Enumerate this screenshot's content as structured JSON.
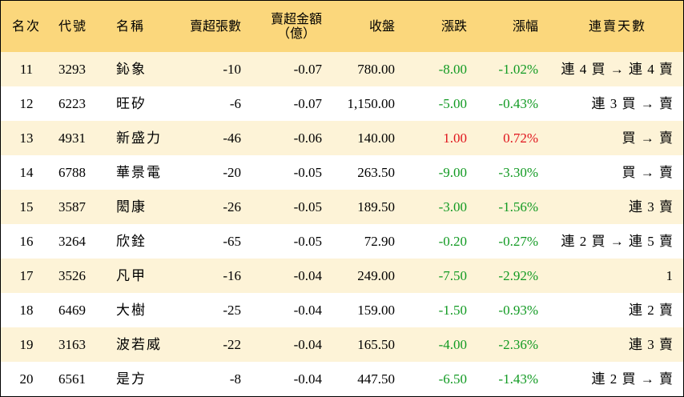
{
  "headers": {
    "rank": "名次",
    "code": "代號",
    "name": "名稱",
    "qty": "賣超張數",
    "amount_line1": "賣超金額",
    "amount_line2": "（億）",
    "close": "收盤",
    "change": "漲跌",
    "pct": "漲幅",
    "days": "連賣天數"
  },
  "colors": {
    "header_bg": "#fbd77c",
    "stripe_bg": "#fdf3d7",
    "down": "#119a22",
    "up": "#e0141c"
  },
  "rows": [
    {
      "rank": "11",
      "code": "3293",
      "name": "鈊象",
      "qty": "-10",
      "amount": "-0.07",
      "close": "780.00",
      "change": "-8.00",
      "pct": "-1.02%",
      "days": "連 4 買 → 連 4 賣",
      "direction": "down"
    },
    {
      "rank": "12",
      "code": "6223",
      "name": "旺矽",
      "qty": "-6",
      "amount": "-0.07",
      "close": "1,150.00",
      "change": "-5.00",
      "pct": "-0.43%",
      "days": "連 3 買 → 賣",
      "direction": "down"
    },
    {
      "rank": "13",
      "code": "4931",
      "name": "新盛力",
      "qty": "-46",
      "amount": "-0.06",
      "close": "140.00",
      "change": "1.00",
      "pct": "0.72%",
      "days": "買 → 賣",
      "direction": "up"
    },
    {
      "rank": "14",
      "code": "6788",
      "name": "華景電",
      "qty": "-20",
      "amount": "-0.05",
      "close": "263.50",
      "change": "-9.00",
      "pct": "-3.30%",
      "days": "買 → 賣",
      "direction": "down"
    },
    {
      "rank": "15",
      "code": "3587",
      "name": "閎康",
      "qty": "-26",
      "amount": "-0.05",
      "close": "189.50",
      "change": "-3.00",
      "pct": "-1.56%",
      "days": "連 3 賣",
      "direction": "down"
    },
    {
      "rank": "16",
      "code": "3264",
      "name": "欣銓",
      "qty": "-65",
      "amount": "-0.05",
      "close": "72.90",
      "change": "-0.20",
      "pct": "-0.27%",
      "days": "連 2 買 → 連 5 賣",
      "direction": "down"
    },
    {
      "rank": "17",
      "code": "3526",
      "name": "凡甲",
      "qty": "-16",
      "amount": "-0.04",
      "close": "249.00",
      "change": "-7.50",
      "pct": "-2.92%",
      "days": "1",
      "direction": "down"
    },
    {
      "rank": "18",
      "code": "6469",
      "name": "大樹",
      "qty": "-25",
      "amount": "-0.04",
      "close": "159.00",
      "change": "-1.50",
      "pct": "-0.93%",
      "days": "連 2 賣",
      "direction": "down"
    },
    {
      "rank": "19",
      "code": "3163",
      "name": "波若威",
      "qty": "-22",
      "amount": "-0.04",
      "close": "165.50",
      "change": "-4.00",
      "pct": "-2.36%",
      "days": "連 3 賣",
      "direction": "down"
    },
    {
      "rank": "20",
      "code": "6561",
      "name": "是方",
      "qty": "-8",
      "amount": "-0.04",
      "close": "447.50",
      "change": "-6.50",
      "pct": "-1.43%",
      "days": "連 2 買 → 賣",
      "direction": "down"
    }
  ]
}
